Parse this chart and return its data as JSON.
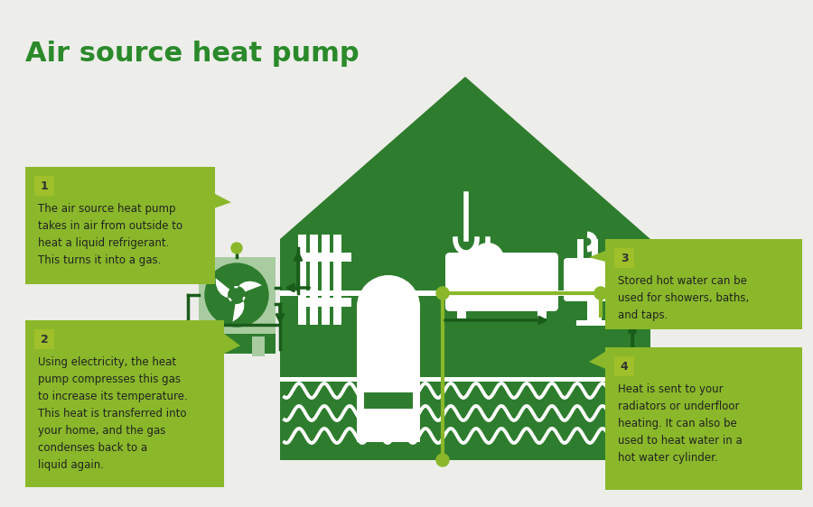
{
  "title": "Air source heat pump",
  "title_color": "#2a8a2a",
  "bg_color": "#ededea",
  "dark_green": "#1a5c1a",
  "mid_green": "#2e7d2e",
  "house_green": "#2e7d2e",
  "light_green": "#8ab82a",
  "pale_green": "#9fc02a",
  "fan_bg": "#a8cca0",
  "white": "#ffffff",
  "olive": "#8ab82a",
  "pipe_color": "#1a5c1a",
  "pipe_lw": 2.2,
  "box1_text": "The air source heat pump\ntakes in air from outside to\nheat a liquid refrigerant.\nThis turns it into a gas.",
  "box2_text": "Using electricity, the heat\npump compresses this gas\nto increase its temperature.\nThis heat is transferred into\nyour home, and the gas\ncondenses back to a\nliquid again.",
  "box3_text": "Stored hot water can be\nused for showers, baths,\nand taps.",
  "box4_text": "Heat is sent to your\nradiators or underfloor\nheating. It can also be\nused to heat water in a\nhot water cylinder.",
  "figw": 9.0,
  "figh": 5.62
}
